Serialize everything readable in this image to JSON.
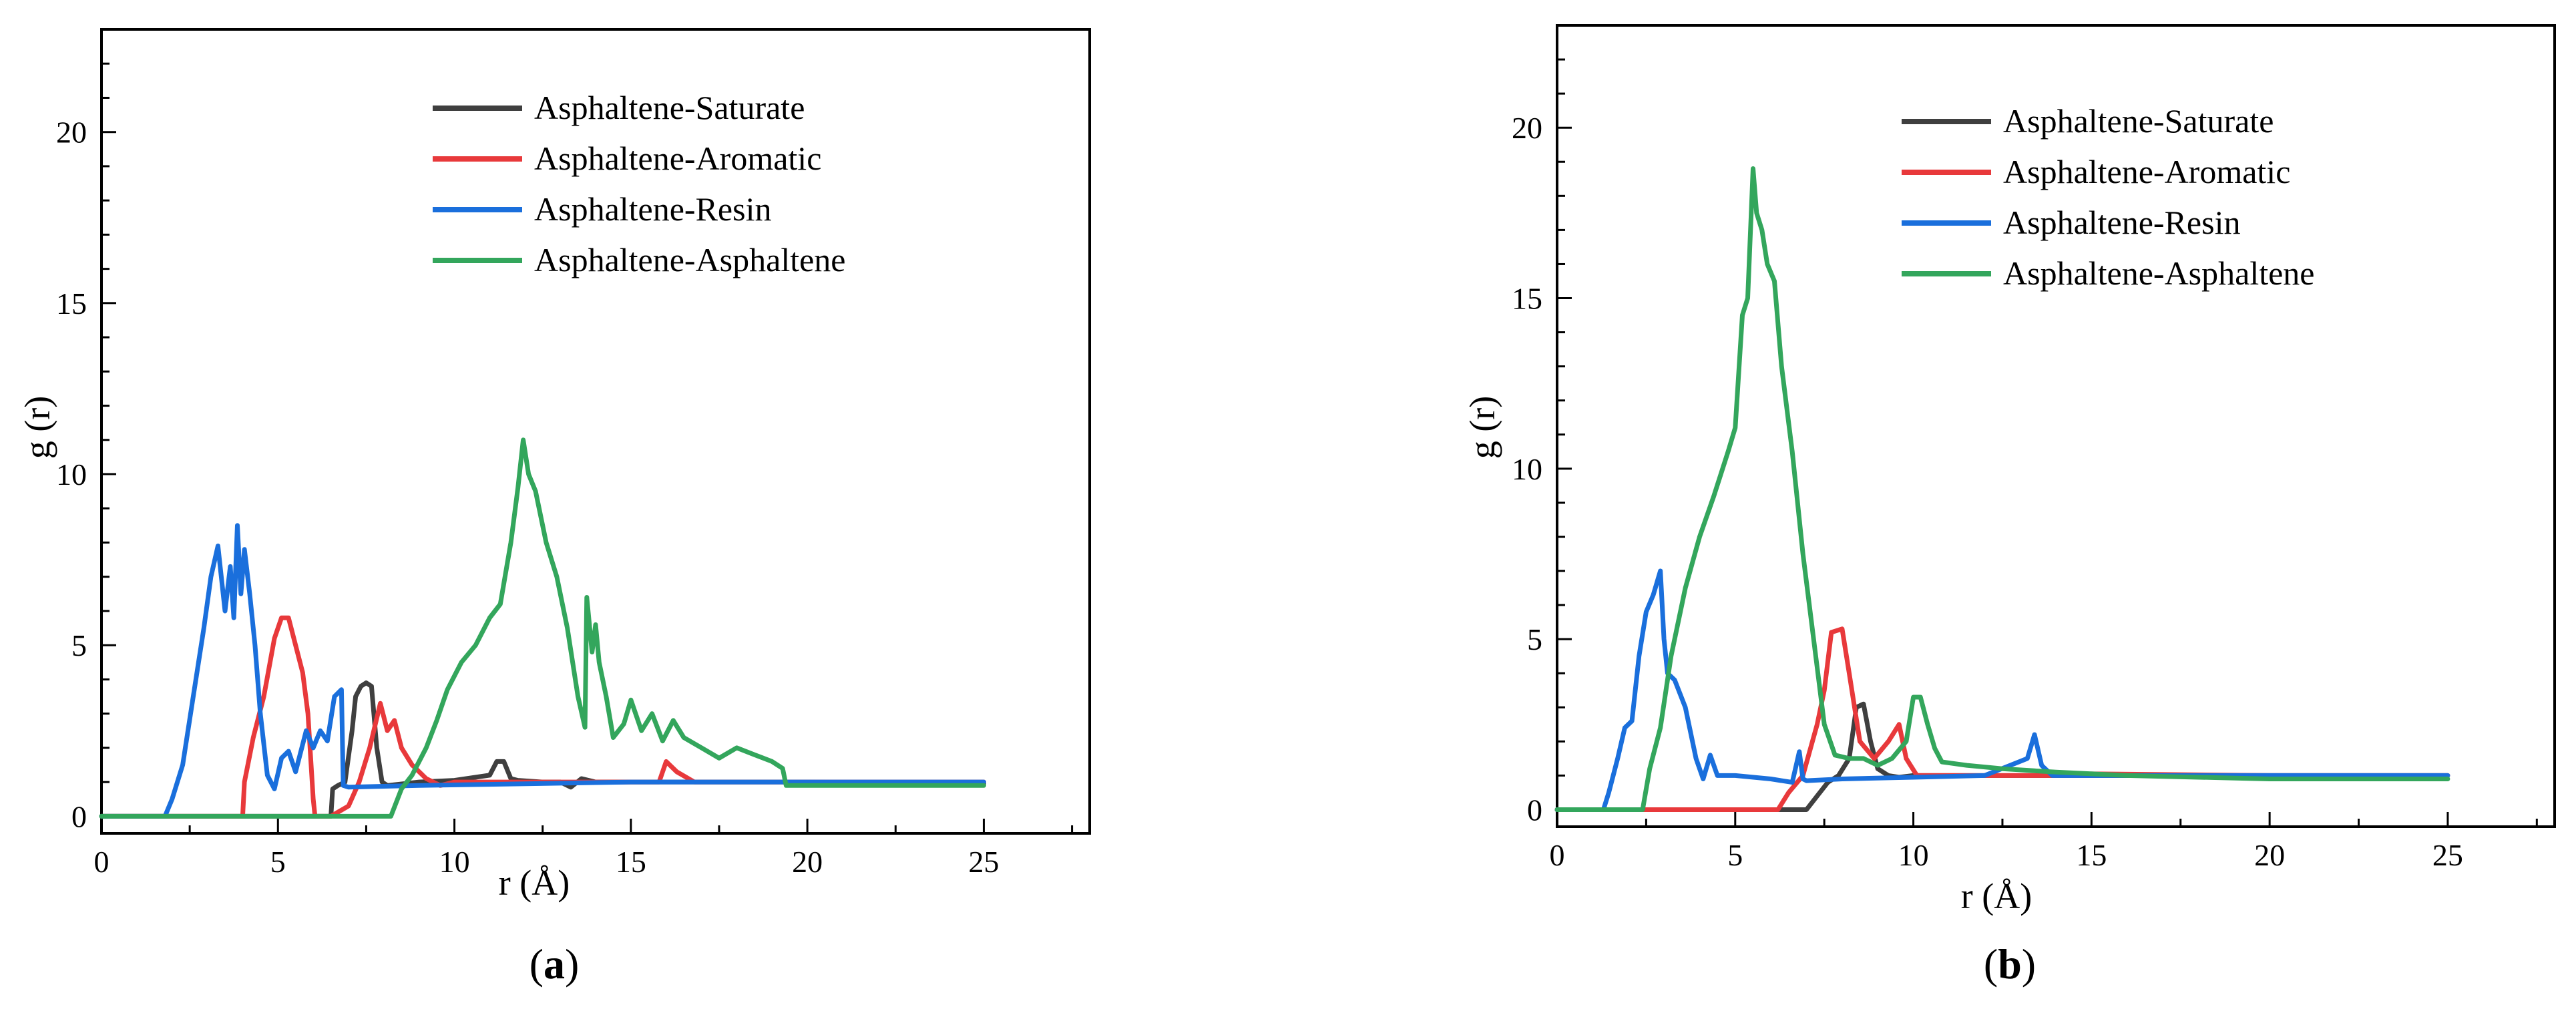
{
  "figure": {
    "panels": [
      {
        "caption_open": "(",
        "caption_letter": "a",
        "caption_close": ")"
      },
      {
        "caption_open": "(",
        "caption_letter": "b",
        "caption_close": ")"
      }
    ]
  },
  "colors": {
    "saturate": "#3f3f3f",
    "aromatic": "#e8393b",
    "resin": "#1a6fdc",
    "asphaltene": "#33a65c"
  },
  "chart_data": [
    {
      "type": "line",
      "title": "",
      "xlabel": "r (Å)",
      "ylabel": "g (r)",
      "xlim": [
        0,
        28
      ],
      "ylim": [
        -0.5,
        23
      ],
      "xticks": [
        0,
        5,
        10,
        15,
        20,
        25
      ],
      "yticks": [
        0,
        5,
        10,
        15,
        20
      ],
      "grid": false,
      "legend_position": "top-right",
      "series": [
        {
          "name": "Asphaltene-Saturate",
          "color_key": "saturate",
          "x": [
            0,
            6.5,
            6.55,
            6.7,
            6.9,
            7.1,
            7.2,
            7.35,
            7.5,
            7.65,
            7.8,
            7.95,
            8.1,
            9,
            10,
            11,
            11.2,
            11.4,
            11.6,
            11.8,
            12.5,
            13,
            13.3,
            13.6,
            14,
            16,
            20,
            25
          ],
          "y": [
            0,
            0,
            0.8,
            0.9,
            1.0,
            2.5,
            3.5,
            3.8,
            3.9,
            3.8,
            2.0,
            1.0,
            0.9,
            1.0,
            1.05,
            1.2,
            1.6,
            1.6,
            1.1,
            1.05,
            1.0,
            1.0,
            0.85,
            1.1,
            1.0,
            1.0,
            1.0,
            0.95
          ]
        },
        {
          "name": "Asphaltene-Aromatic",
          "color_key": "aromatic",
          "x": [
            0,
            4.0,
            4.05,
            4.3,
            4.6,
            4.9,
            5.1,
            5.3,
            5.5,
            5.7,
            5.85,
            6.0,
            6.05,
            6.5,
            7.0,
            7.3,
            7.6,
            7.9,
            8.1,
            8.3,
            8.5,
            8.8,
            9.2,
            9.6,
            10,
            12,
            14,
            15.8,
            16.0,
            16.3,
            16.8,
            18,
            20,
            25
          ],
          "y": [
            0,
            0,
            1.0,
            2.3,
            3.5,
            5.2,
            5.8,
            5.8,
            5.0,
            4.2,
            3.0,
            0.5,
            0,
            0,
            0.3,
            1.0,
            2.0,
            3.3,
            2.5,
            2.8,
            2.0,
            1.5,
            1.1,
            0.9,
            1.0,
            1.0,
            1.0,
            1.0,
            1.6,
            1.3,
            1.0,
            1.0,
            1.0,
            1.0
          ]
        },
        {
          "name": "Asphaltene-Resin",
          "color_key": "resin",
          "x": [
            0,
            1.8,
            2.0,
            2.3,
            2.6,
            2.9,
            3.1,
            3.3,
            3.5,
            3.65,
            3.75,
            3.85,
            3.95,
            4.05,
            4.2,
            4.35,
            4.5,
            4.7,
            4.9,
            5.1,
            5.3,
            5.5,
            5.8,
            6.0,
            6.2,
            6.4,
            6.6,
            6.8,
            6.85,
            7.0,
            9,
            12,
            15,
            20,
            25
          ],
          "y": [
            0,
            0,
            0.5,
            1.5,
            3.5,
            5.5,
            7.0,
            7.9,
            6.0,
            7.3,
            5.8,
            8.5,
            6.5,
            7.8,
            6.5,
            5.0,
            3.0,
            1.2,
            0.8,
            1.7,
            1.9,
            1.3,
            2.5,
            2.0,
            2.5,
            2.2,
            3.5,
            3.7,
            0.9,
            0.85,
            0.9,
            0.95,
            1.0,
            1.0,
            1.0
          ]
        },
        {
          "name": "Asphaltene-Asphaltene",
          "color_key": "asphaltene",
          "x": [
            0,
            8.2,
            8.5,
            8.8,
            9.2,
            9.5,
            9.8,
            10.2,
            10.6,
            11.0,
            11.3,
            11.6,
            11.8,
            11.95,
            12.1,
            12.3,
            12.6,
            12.9,
            13.2,
            13.5,
            13.7,
            13.75,
            13.9,
            14.0,
            14.1,
            14.3,
            14.5,
            14.8,
            15.0,
            15.3,
            15.6,
            15.9,
            16.2,
            16.5,
            17.0,
            17.5,
            18.0,
            18.5,
            19.0,
            19.3,
            19.4,
            20,
            25
          ],
          "y": [
            0,
            0,
            0.8,
            1.2,
            2.0,
            2.8,
            3.7,
            4.5,
            5.0,
            5.8,
            6.2,
            8.0,
            9.6,
            11.0,
            10.0,
            9.5,
            8.0,
            7.0,
            5.5,
            3.5,
            2.6,
            6.4,
            4.8,
            5.6,
            4.5,
            3.5,
            2.3,
            2.7,
            3.4,
            2.5,
            3.0,
            2.2,
            2.8,
            2.3,
            2.0,
            1.7,
            2.0,
            1.8,
            1.6,
            1.4,
            0.9,
            0.9,
            0.9
          ]
        }
      ]
    },
    {
      "type": "line",
      "title": "",
      "xlabel": "r (Å)",
      "ylabel": "g (r)",
      "xlim": [
        0,
        28
      ],
      "ylim": [
        -0.5,
        23
      ],
      "xticks": [
        0,
        5,
        10,
        15,
        20,
        25
      ],
      "yticks": [
        0,
        5,
        10,
        15,
        20
      ],
      "grid": false,
      "legend_position": "top-right",
      "series": [
        {
          "name": "Asphaltene-Saturate",
          "color_key": "saturate",
          "x": [
            0,
            7.0,
            7.3,
            7.6,
            7.9,
            8.2,
            8.4,
            8.6,
            8.8,
            9.0,
            9.3,
            9.6,
            10,
            12,
            15,
            20,
            25
          ],
          "y": [
            0,
            0,
            0.4,
            0.8,
            1.0,
            1.5,
            3.0,
            3.1,
            2.0,
            1.2,
            1.0,
            0.95,
            1.0,
            1.0,
            1.0,
            1.0,
            1.0
          ]
        },
        {
          "name": "Asphaltene-Aromatic",
          "color_key": "aromatic",
          "x": [
            0,
            2.3,
            2.4,
            6.2,
            6.5,
            6.9,
            7.3,
            7.5,
            7.7,
            8.0,
            8.2,
            8.5,
            8.9,
            9.3,
            9.6,
            9.8,
            10.1,
            11,
            14,
            15,
            20,
            25
          ],
          "y": [
            0,
            0,
            0,
            0,
            0.5,
            1.0,
            2.5,
            3.5,
            5.2,
            5.3,
            4.0,
            2.0,
            1.5,
            2.0,
            2.5,
            1.5,
            1.0,
            1.0,
            1.0,
            1.05,
            1.0,
            1.0
          ]
        },
        {
          "name": "Asphaltene-Resin",
          "color_key": "resin",
          "x": [
            0,
            1.3,
            1.45,
            1.7,
            1.9,
            2.1,
            2.3,
            2.5,
            2.7,
            2.9,
            3.0,
            3.1,
            3.3,
            3.6,
            3.9,
            4.1,
            4.3,
            4.5,
            4.7,
            5,
            6,
            6.6,
            6.8,
            6.9,
            7.0,
            8,
            10,
            12,
            13.2,
            13.4,
            13.6,
            13.9,
            15,
            20,
            25
          ],
          "y": [
            0,
            0,
            0.5,
            1.5,
            2.4,
            2.6,
            4.5,
            5.8,
            6.3,
            7.0,
            5.0,
            4.0,
            3.8,
            3.0,
            1.5,
            0.9,
            1.6,
            1.0,
            1.0,
            1.0,
            0.9,
            0.8,
            1.7,
            0.9,
            0.85,
            0.9,
            0.95,
            1.0,
            1.5,
            2.2,
            1.3,
            1.0,
            1.0,
            1.0,
            1.0
          ]
        },
        {
          "name": "Asphaltene-Asphaltene",
          "color_key": "asphaltene",
          "x": [
            0,
            2.4,
            2.6,
            2.9,
            3.2,
            3.6,
            4.0,
            4.4,
            4.8,
            5.0,
            5.2,
            5.35,
            5.5,
            5.6,
            5.75,
            5.9,
            6.1,
            6.3,
            6.6,
            6.9,
            7.2,
            7.5,
            7.8,
            8.2,
            8.6,
            9.0,
            9.4,
            9.8,
            10.0,
            10.2,
            10.4,
            10.6,
            10.8,
            11.5,
            12.5,
            14,
            16,
            20,
            25
          ],
          "y": [
            0,
            0,
            1.2,
            2.4,
            4.5,
            6.5,
            8.0,
            9.2,
            10.5,
            11.2,
            14.5,
            15.0,
            18.8,
            17.5,
            17.0,
            16.0,
            15.5,
            13.0,
            10.5,
            7.5,
            5.0,
            2.5,
            1.6,
            1.5,
            1.5,
            1.3,
            1.5,
            2.0,
            3.3,
            3.3,
            2.5,
            1.8,
            1.4,
            1.3,
            1.2,
            1.1,
            1.0,
            0.9,
            0.9
          ]
        }
      ]
    }
  ]
}
